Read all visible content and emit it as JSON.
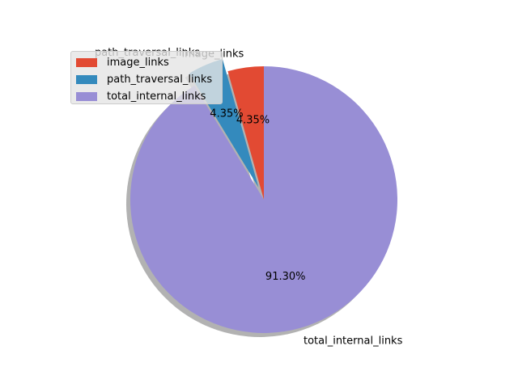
{
  "chart_data": {
    "type": "pie",
    "title": "",
    "slices": [
      {
        "label": "image_links",
        "value": 4.35,
        "pct_label": "4.35%",
        "color": "#E24A33",
        "explode": 0.0
      },
      {
        "label": "path_traversal_links",
        "value": 4.35,
        "pct_label": "4.35%",
        "color": "#348ABD",
        "explode": 0.1
      },
      {
        "label": "total_internal_links",
        "value": 91.3,
        "pct_label": "91.30%",
        "color": "#988ED5",
        "explode": 0.0
      }
    ],
    "start_angle": 90,
    "shadow": true,
    "legend_position": "upper-left"
  },
  "legend": {
    "items": [
      {
        "label": "image_links",
        "color": "#E24A33"
      },
      {
        "label": "path_traversal_links",
        "color": "#348ABD"
      },
      {
        "label": "total_internal_links",
        "color": "#988ED5"
      }
    ]
  }
}
